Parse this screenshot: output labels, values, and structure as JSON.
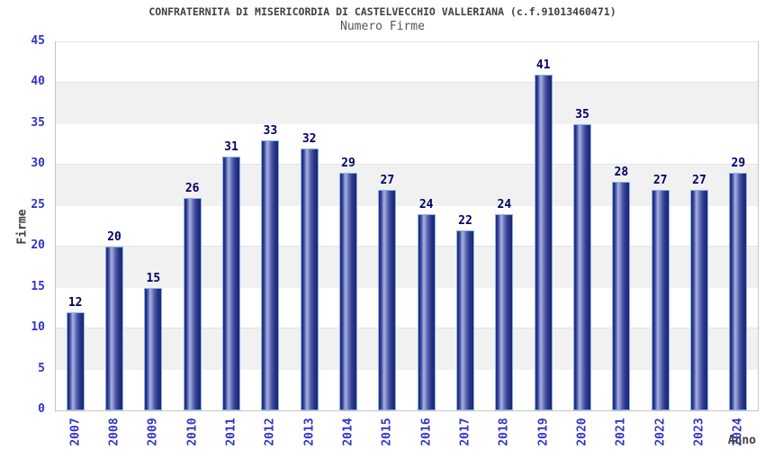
{
  "header": {
    "title": "CONFRATERNITA DI MISERICORDIA DI CASTELVECCHIO VALLERIANA (c.f.91013460471)",
    "subtitle": "Numero Firme"
  },
  "chart_data": {
    "type": "bar",
    "title": "CONFRATERNITA DI MISERICORDIA DI CASTELVECCHIO VALLERIANA (c.f.91013460471)",
    "subtitle": "Numero Firme",
    "categories": [
      "2007",
      "2008",
      "2009",
      "2010",
      "2011",
      "2012",
      "2013",
      "2014",
      "2015",
      "2016",
      "2017",
      "2018",
      "2019",
      "2020",
      "2021",
      "2022",
      "2023",
      "2024"
    ],
    "values": [
      12,
      20,
      15,
      26,
      31,
      33,
      32,
      29,
      27,
      24,
      22,
      24,
      41,
      35,
      28,
      27,
      27,
      29
    ],
    "xlabel": "Anno",
    "ylabel": "Firme",
    "ylim": [
      0,
      45
    ],
    "ytick_step": 5,
    "yticks": [
      0,
      5,
      10,
      15,
      20,
      25,
      30,
      35,
      40,
      45
    ],
    "legend": "none",
    "grid": "alternating horizontal bands every 5 units",
    "bar_value_labels": true,
    "x_tick_rotation": -90,
    "colors": {
      "title_color": "#404040",
      "subtitle_color": "#555555",
      "axis_title_color": "#404040",
      "tick_label": "#3232cd",
      "value_label": "#000066",
      "bar_dark": "#1f2979",
      "bar_light": "#a7b0e0",
      "bar_border": "#85b5e9",
      "band_gray": "#f1f1f1",
      "gridline": "#e3e3e3",
      "plot_border": "#c6c6c6"
    }
  }
}
